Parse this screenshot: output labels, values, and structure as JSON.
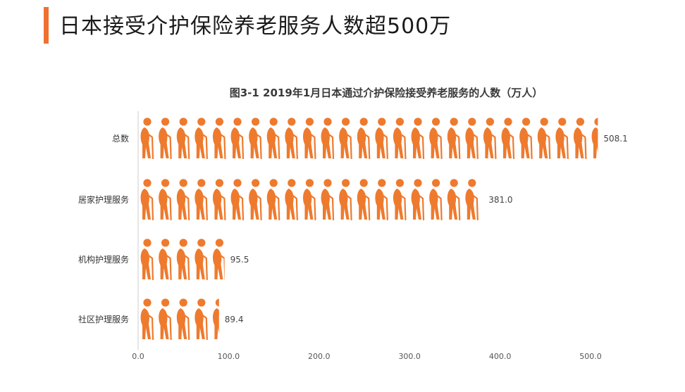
{
  "header": {
    "title": "日本接受介护保险养老服务人数超500万",
    "accent_color": "#ee7130"
  },
  "chart_data": {
    "type": "bar",
    "orientation": "horizontal",
    "title": "图3-1 2019年1月日本通过介护保险接受养老服务的人数（万人）",
    "categories": [
      "总数",
      "居家护理服务",
      "机构护理服务",
      "社区护理服务"
    ],
    "values": [
      508.1,
      381.0,
      95.5,
      89.4
    ],
    "value_labels": [
      "508.1",
      "381.0",
      "95.5",
      "89.4"
    ],
    "xlim": [
      0,
      500
    ],
    "xticks": [
      0,
      100,
      200,
      300,
      400,
      500
    ],
    "xtick_labels": [
      "0.0",
      "100.0",
      "200.0",
      "300.0",
      "400.0",
      "500.0"
    ],
    "icon_unit": 20,
    "bar_icon": "elderly-person-with-cane-icon",
    "bar_color": "#ee7a2e",
    "grid": false,
    "legend": "none"
  }
}
